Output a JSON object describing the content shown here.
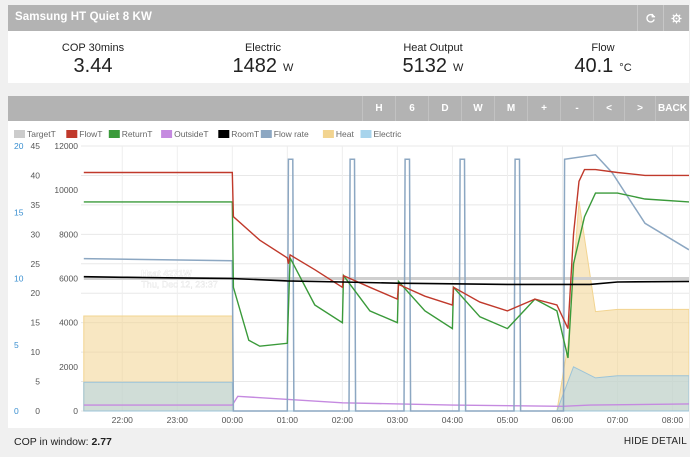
{
  "header": {
    "title": "Samsung HT Quiet 8 KW"
  },
  "stats": [
    {
      "label": "COP 30mins",
      "value": "3.44",
      "unit": ""
    },
    {
      "label": "Electric",
      "value": "1482",
      "unit": "W"
    },
    {
      "label": "Heat Output",
      "value": "5132",
      "unit": "W"
    },
    {
      "label": "Flow",
      "value": "40.1",
      "unit": "°C"
    }
  ],
  "toolbar": {
    "buttons": [
      "H",
      "6",
      "D",
      "W",
      "M",
      "+",
      "-",
      "<",
      ">",
      "BACK"
    ]
  },
  "legend": [
    {
      "name": "TargetT",
      "color": "#cccccc"
    },
    {
      "name": "FlowT",
      "color": "#c0392b"
    },
    {
      "name": "ReturnT",
      "color": "#3a9a3a"
    },
    {
      "name": "OutsideT",
      "color": "#c58ae0"
    },
    {
      "name": "RoomT",
      "color": "#000000"
    },
    {
      "name": "Flow rate",
      "color": "#8ca7c2"
    },
    {
      "name": "Heat",
      "color": "#f2d490"
    },
    {
      "name": "Electric",
      "color": "#a8d4ec"
    }
  ],
  "tooltip": {
    "line1": "Heat 4271W",
    "line2": "Thu, Dec 12, 23:37"
  },
  "footer": {
    "cop_label": "COP in window:",
    "cop_value": "2.77",
    "hide_detail": "HIDE DETAIL"
  },
  "colors": {
    "header_bg": "#b3b3b3",
    "cop_axis": "#3a8fd0",
    "flowT": "#c0392b",
    "returnT": "#3a9a3a",
    "roomT": "#000000",
    "outsideT": "#c58ae0",
    "flowrate": "#8ca7c2",
    "heat": "#f2d490",
    "electric": "#a8d4ec"
  },
  "chart_data": {
    "type": "line",
    "x_ticks": [
      "22:00",
      "23:00",
      "00:00",
      "01:00",
      "02:00",
      "03:00",
      "04:00",
      "05:00",
      "06:00",
      "07:00",
      "08:00"
    ],
    "x_tick_hours": [
      22,
      23,
      24,
      25,
      26,
      27,
      28,
      29,
      30,
      31,
      32
    ],
    "x_range": [
      21.25,
      32.3
    ],
    "axes": {
      "cop": {
        "ticks": [
          "0",
          "5",
          "10",
          "15",
          "20"
        ],
        "range": [
          0,
          20
        ],
        "color": "#3a8fd0"
      },
      "temperature": {
        "ticks": [
          "0",
          "5",
          "10",
          "15",
          "20",
          "25",
          "30",
          "35",
          "40",
          "45"
        ],
        "range": [
          0,
          45
        ]
      },
      "flow": {
        "ticks": [
          "0",
          "2000",
          "4000",
          "6000",
          "8000",
          "10000",
          "12000"
        ],
        "range": [
          0,
          12000
        ]
      }
    },
    "series": [
      {
        "name": "FlowT",
        "axis": "temperature",
        "points": [
          [
            21.3,
            40.5
          ],
          [
            24.0,
            40.5
          ],
          [
            24.02,
            33
          ],
          [
            24.5,
            29
          ],
          [
            25.0,
            26
          ],
          [
            25.02,
            25
          ],
          [
            25.05,
            26.5
          ],
          [
            25.5,
            24
          ],
          [
            26.0,
            21
          ],
          [
            26.02,
            23
          ],
          [
            26.5,
            21
          ],
          [
            27.0,
            19
          ],
          [
            27.02,
            21.5
          ],
          [
            27.5,
            19.5
          ],
          [
            28.0,
            18
          ],
          [
            28.02,
            21
          ],
          [
            28.5,
            18.5
          ],
          [
            29.0,
            17
          ],
          [
            29.5,
            19
          ],
          [
            29.9,
            18
          ],
          [
            30.1,
            14
          ],
          [
            30.2,
            30
          ],
          [
            30.3,
            39
          ],
          [
            30.4,
            41
          ],
          [
            30.6,
            41
          ],
          [
            31.0,
            40.5
          ],
          [
            31.5,
            40
          ],
          [
            32.3,
            40
          ]
        ]
      },
      {
        "name": "ReturnT",
        "axis": "temperature",
        "points": [
          [
            21.3,
            35.5
          ],
          [
            24.0,
            35.5
          ],
          [
            24.02,
            21
          ],
          [
            24.3,
            12
          ],
          [
            24.5,
            11
          ],
          [
            25.0,
            11.5
          ],
          [
            25.05,
            26
          ],
          [
            25.5,
            18
          ],
          [
            26.0,
            15
          ],
          [
            26.02,
            23
          ],
          [
            26.5,
            17
          ],
          [
            27.0,
            15
          ],
          [
            27.02,
            22
          ],
          [
            27.5,
            17
          ],
          [
            28.0,
            14
          ],
          [
            28.02,
            21
          ],
          [
            28.5,
            16
          ],
          [
            29.0,
            14
          ],
          [
            29.5,
            19
          ],
          [
            29.9,
            17
          ],
          [
            30.1,
            9
          ],
          [
            30.2,
            25
          ],
          [
            30.4,
            33
          ],
          [
            30.6,
            37
          ],
          [
            31.0,
            37
          ],
          [
            31.5,
            36
          ],
          [
            32.3,
            35.5
          ]
        ]
      },
      {
        "name": "RoomT",
        "axis": "temperature",
        "points": [
          [
            21.3,
            22.8
          ],
          [
            22.0,
            22.7
          ],
          [
            23.0,
            22.6
          ],
          [
            24.0,
            22.5
          ],
          [
            25.0,
            22.1
          ],
          [
            26.0,
            21.9
          ],
          [
            27.0,
            21.7
          ],
          [
            28.0,
            21.6
          ],
          [
            29.0,
            21.5
          ],
          [
            30.0,
            21.5
          ],
          [
            30.5,
            21.5
          ],
          [
            31.0,
            21.9
          ],
          [
            32.3,
            22.0
          ]
        ]
      },
      {
        "name": "TargetT",
        "axis": "temperature",
        "points": [
          [
            21.3,
            22.5
          ],
          [
            32.3,
            22.5
          ]
        ]
      },
      {
        "name": "OutsideT",
        "axis": "temperature",
        "points": [
          [
            21.3,
            1.0
          ],
          [
            24.0,
            1.0
          ],
          [
            24.1,
            2.5
          ],
          [
            26.0,
            1.4
          ],
          [
            28.0,
            1.0
          ],
          [
            30.0,
            0.8
          ],
          [
            30.5,
            1.0
          ],
          [
            32.3,
            1.2
          ]
        ]
      },
      {
        "name": "Flow rate",
        "axis": "flow",
        "points": [
          [
            21.3,
            6900
          ],
          [
            24.0,
            6800
          ],
          [
            24.02,
            0
          ],
          [
            25.0,
            0
          ],
          [
            25.02,
            11400
          ],
          [
            25.1,
            11400
          ],
          [
            25.12,
            0
          ],
          [
            26.12,
            0
          ],
          [
            26.14,
            11400
          ],
          [
            26.22,
            11400
          ],
          [
            26.24,
            0
          ],
          [
            27.12,
            0
          ],
          [
            27.14,
            11400
          ],
          [
            27.22,
            11400
          ],
          [
            27.24,
            0
          ],
          [
            28.12,
            0
          ],
          [
            28.14,
            11400
          ],
          [
            28.22,
            11400
          ],
          [
            28.24,
            0
          ],
          [
            29.12,
            0
          ],
          [
            29.14,
            11400
          ],
          [
            29.22,
            11400
          ],
          [
            29.24,
            0
          ],
          [
            30.02,
            0
          ],
          [
            30.04,
            11400
          ],
          [
            30.6,
            11600
          ],
          [
            30.9,
            10800
          ],
          [
            31.5,
            8500
          ],
          [
            32.3,
            7300
          ]
        ]
      },
      {
        "name": "Heat",
        "axis": "flow",
        "points": [
          [
            21.3,
            4300
          ],
          [
            24.0,
            4300
          ],
          [
            24.02,
            0
          ],
          [
            29.9,
            0
          ],
          [
            30.1,
            3000
          ],
          [
            30.3,
            9500
          ],
          [
            30.6,
            4500
          ],
          [
            31.0,
            4600
          ],
          [
            32.3,
            4600
          ]
        ]
      },
      {
        "name": "Electric",
        "axis": "flow",
        "points": [
          [
            21.3,
            1300
          ],
          [
            24.0,
            1300
          ],
          [
            24.02,
            0
          ],
          [
            29.9,
            0
          ],
          [
            30.2,
            2000
          ],
          [
            30.6,
            1500
          ],
          [
            31.0,
            1600
          ],
          [
            32.3,
            1600
          ]
        ]
      }
    ]
  }
}
